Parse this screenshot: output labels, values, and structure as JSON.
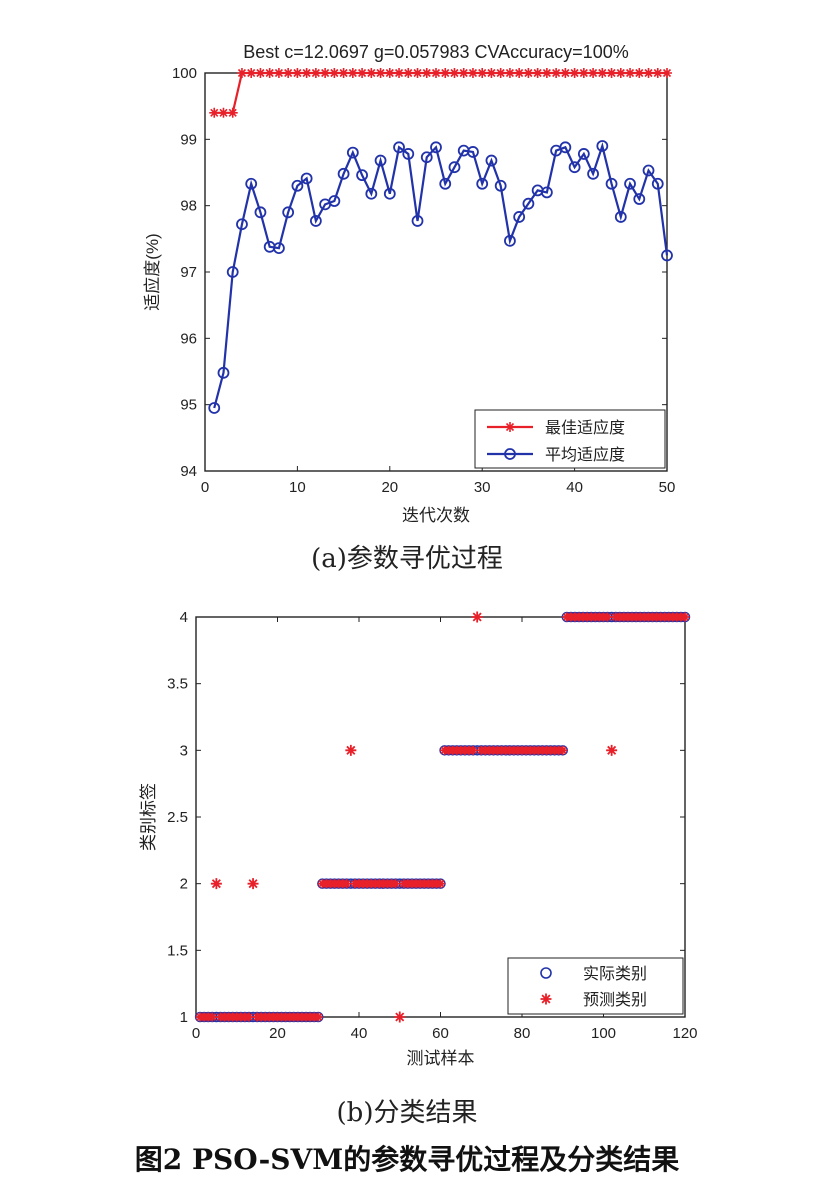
{
  "chart_data": [
    {
      "type": "line",
      "title": "Best c=12.0697 g=0.057983 CVAccuracy=100%",
      "xlabel": "迭代次数",
      "ylabel": "适应度(%)",
      "xlim": [
        0,
        50
      ],
      "ylim": [
        94,
        100
      ],
      "xticks": [
        0,
        10,
        20,
        30,
        40,
        50
      ],
      "yticks": [
        94,
        95,
        96,
        97,
        98,
        99,
        100
      ],
      "legend_position": "bottom-right",
      "grid": false,
      "series": [
        {
          "name": "最佳适应度",
          "color": "#e8202a",
          "marker": "plus-star",
          "x": [
            1,
            2,
            3,
            4,
            5,
            6,
            7,
            8,
            9,
            10,
            11,
            12,
            13,
            14,
            15,
            16,
            17,
            18,
            19,
            20,
            21,
            22,
            23,
            24,
            25,
            26,
            27,
            28,
            29,
            30,
            31,
            32,
            33,
            34,
            35,
            36,
            37,
            38,
            39,
            40,
            41,
            42,
            43,
            44,
            45,
            46,
            47,
            48,
            49,
            50
          ],
          "values": [
            99.4,
            99.4,
            99.4,
            100,
            100,
            100,
            100,
            100,
            100,
            100,
            100,
            100,
            100,
            100,
            100,
            100,
            100,
            100,
            100,
            100,
            100,
            100,
            100,
            100,
            100,
            100,
            100,
            100,
            100,
            100,
            100,
            100,
            100,
            100,
            100,
            100,
            100,
            100,
            100,
            100,
            100,
            100,
            100,
            100,
            100,
            100,
            100,
            100,
            100,
            100
          ]
        },
        {
          "name": "平均适应度",
          "color": "#2233aa",
          "marker": "circle",
          "x": [
            1,
            2,
            3,
            4,
            5,
            6,
            7,
            8,
            9,
            10,
            11,
            12,
            13,
            14,
            15,
            16,
            17,
            18,
            19,
            20,
            21,
            22,
            23,
            24,
            25,
            26,
            27,
            28,
            29,
            30,
            31,
            32,
            33,
            34,
            35,
            36,
            37,
            38,
            39,
            40,
            41,
            42,
            43,
            44,
            45,
            46,
            47,
            48,
            49,
            50
          ],
          "values": [
            94.95,
            95.48,
            97.0,
            97.72,
            98.33,
            97.9,
            97.38,
            97.36,
            97.9,
            98.3,
            98.41,
            97.77,
            98.02,
            98.07,
            98.48,
            98.8,
            98.46,
            98.18,
            98.68,
            98.18,
            98.88,
            98.78,
            97.77,
            98.73,
            98.88,
            98.33,
            98.58,
            98.83,
            98.81,
            98.33,
            98.68,
            98.3,
            97.47,
            97.83,
            98.03,
            98.23,
            98.2,
            98.83,
            98.88,
            98.58,
            98.78,
            98.48,
            98.9,
            98.33,
            97.83,
            98.33,
            98.1,
            98.53,
            98.33,
            97.25
          ]
        }
      ]
    },
    {
      "type": "scatter",
      "title": "",
      "xlabel": "测试样本",
      "ylabel": "类别标签",
      "xlim": [
        0,
        120
      ],
      "ylim": [
        1,
        4
      ],
      "xticks": [
        0,
        20,
        40,
        60,
        80,
        100,
        120
      ],
      "yticks": [
        1,
        1.5,
        2,
        2.5,
        3,
        3.5,
        4
      ],
      "legend_position": "bottom-right",
      "grid": false,
      "series": [
        {
          "name": "实际类别",
          "color": "#2233aa",
          "marker": "circle",
          "segments": [
            {
              "class": 1,
              "from": 1,
              "to": 30
            },
            {
              "class": 2,
              "from": 31,
              "to": 60
            },
            {
              "class": 3,
              "from": 61,
              "to": 90
            },
            {
              "class": 4,
              "from": 91,
              "to": 120
            }
          ]
        },
        {
          "name": "预测类别",
          "color": "#e8202a",
          "marker": "star",
          "segments": [
            {
              "class": 1,
              "from": 1,
              "to": 30
            },
            {
              "class": 2,
              "from": 31,
              "to": 60
            },
            {
              "class": 3,
              "from": 61,
              "to": 90
            },
            {
              "class": 4,
              "from": 91,
              "to": 120
            }
          ],
          "outliers": [
            {
              "x": 5,
              "y": 2
            },
            {
              "x": 14,
              "y": 2
            },
            {
              "x": 38,
              "y": 3
            },
            {
              "x": 50,
              "y": 1
            },
            {
              "x": 69,
              "y": 4
            },
            {
              "x": 102,
              "y": 3
            }
          ]
        }
      ]
    }
  ],
  "captions": {
    "a": "(a)参数寻优过程",
    "b": "(b)分类结果",
    "figure": "图2   PSO-SVM的参数寻优过程及分类结果"
  }
}
